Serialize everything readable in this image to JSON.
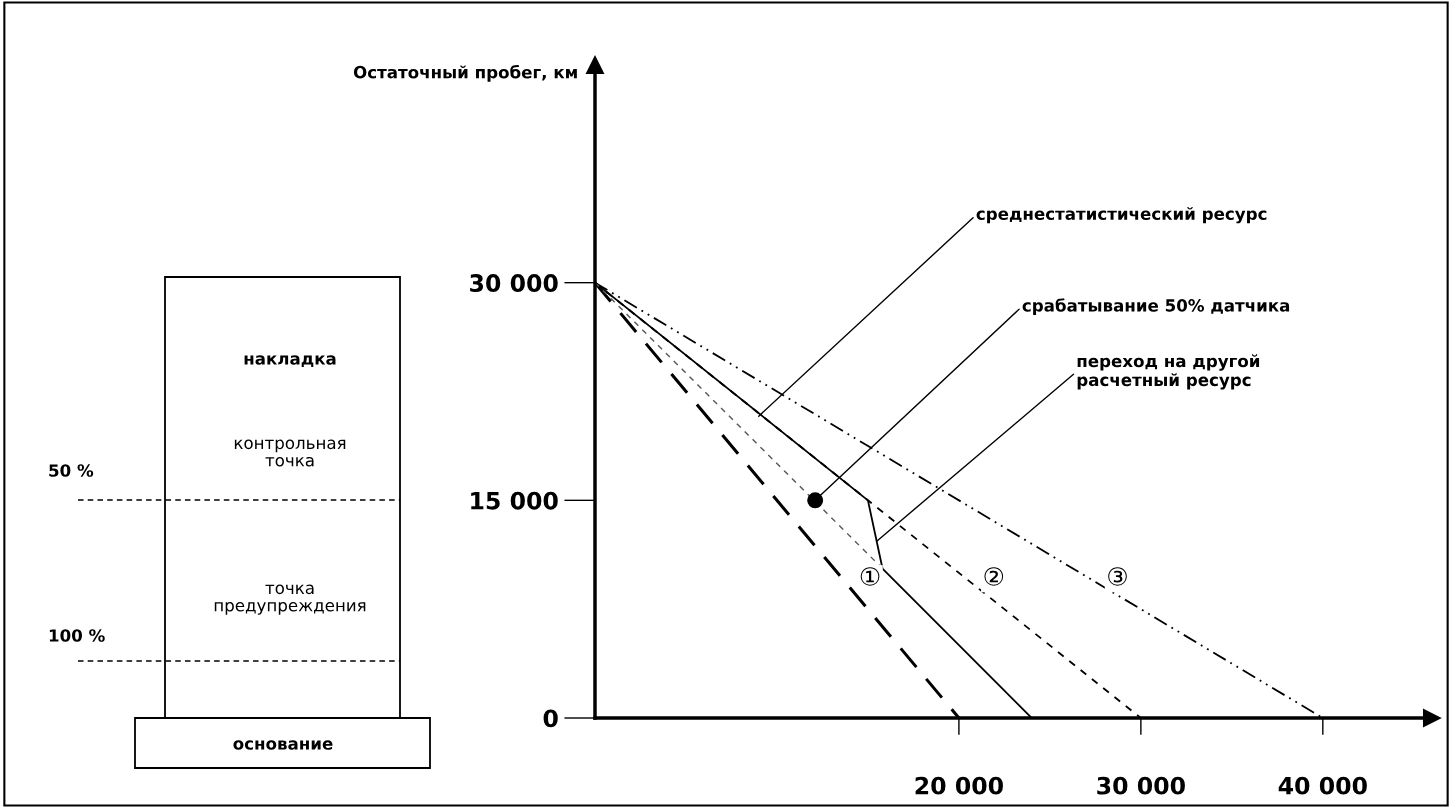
{
  "chart_data": {
    "type": "line",
    "ylabel": "Остаточный пробег, км",
    "xlim": [
      0,
      46000
    ],
    "ylim": [
      0,
      45000
    ],
    "xticks": [
      {
        "value": 20000,
        "label": "20 000"
      },
      {
        "value": 30000,
        "label": "30 000"
      },
      {
        "value": 40000,
        "label": "40 000"
      }
    ],
    "yticks": [
      {
        "value": 0,
        "label": "0"
      },
      {
        "value": 15000,
        "label": "15 000"
      },
      {
        "value": 30000,
        "label": "30 000"
      }
    ],
    "grid": false,
    "legend": false,
    "marker": "none",
    "series": [
      {
        "name": "①",
        "color": "#000000",
        "line_style": "dashed",
        "x": [
          0,
          20000
        ],
        "values": [
          30000,
          0
        ]
      },
      {
        "name": "②",
        "color": "#000000",
        "line_style": "dotted",
        "x": [
          0,
          30000
        ],
        "values": [
          30000,
          0
        ]
      },
      {
        "name": "③",
        "color": "#000000",
        "line_style": "dashdot",
        "x": [
          0,
          40000
        ],
        "values": [
          30000,
          0
        ]
      },
      {
        "color": "#000000",
        "line_style": "solid",
        "x": [
          0,
          15000,
          15800,
          24000
        ],
        "values": [
          30000,
          15000,
          10300,
          0
        ]
      },
      {
        "color": "#555555",
        "line_style": "dotted",
        "x": [
          0,
          15800
        ],
        "values": [
          30000,
          10300
        ]
      },
      {
        "type": "scatter",
        "marker": "circle",
        "color": "#000000",
        "x": [
          12100
        ],
        "values": [
          15000
        ]
      }
    ],
    "annotations": [
      {
        "text": "среднестатистический ресурс",
        "x": 9000,
        "y": 20800
      },
      {
        "text": "срабатывание 50% датчика",
        "x": 12100,
        "y": 15000
      },
      {
        "text": "переход на другой\nрасчетный ресурс",
        "x": 15500,
        "y": 12200
      },
      "накладка",
      "контрольная\nточка",
      "точка\nпредупреждения",
      "основание",
      "50 %",
      "100 %"
    ]
  }
}
